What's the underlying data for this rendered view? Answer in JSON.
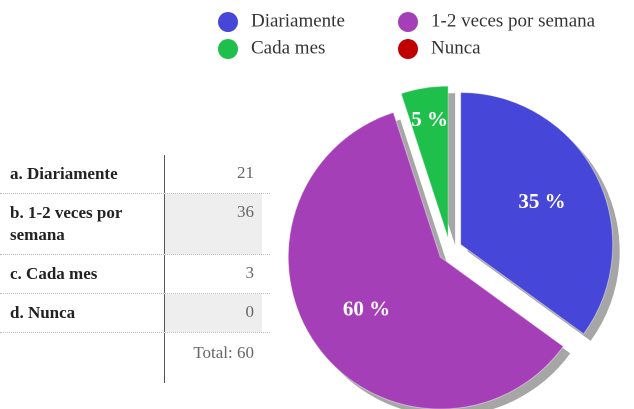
{
  "chart_data": {
    "type": "pie",
    "categories": [
      "Diariamente",
      "1-2 veces por semana",
      "Cada mes",
      "Nunca"
    ],
    "values": [
      35,
      60,
      5,
      0
    ],
    "value_labels": [
      "35 %",
      "60 %",
      "5 %",
      null
    ],
    "colors": [
      "#4646d8",
      "#a53fb8",
      "#1fbf4c",
      "#c00000"
    ]
  },
  "table": {
    "rows": [
      [
        "a. Diariamente",
        21
      ],
      [
        "b. 1-2 veces por semana",
        36
      ],
      [
        "c. Cada mes",
        3
      ],
      [
        "d. Nunca",
        0
      ]
    ],
    "total": "Total: 60"
  }
}
